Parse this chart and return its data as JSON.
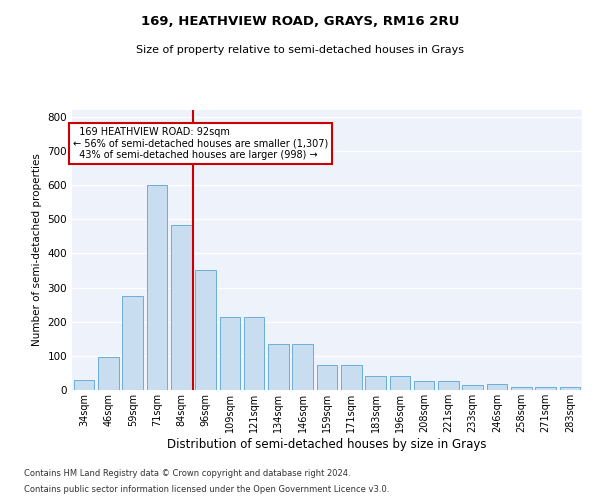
{
  "title1": "169, HEATHVIEW ROAD, GRAYS, RM16 2RU",
  "title2": "Size of property relative to semi-detached houses in Grays",
  "xlabel": "Distribution of semi-detached houses by size in Grays",
  "ylabel": "Number of semi-detached properties",
  "categories": [
    "34sqm",
    "46sqm",
    "59sqm",
    "71sqm",
    "84sqm",
    "96sqm",
    "109sqm",
    "121sqm",
    "134sqm",
    "146sqm",
    "159sqm",
    "171sqm",
    "183sqm",
    "196sqm",
    "208sqm",
    "221sqm",
    "233sqm",
    "246sqm",
    "258sqm",
    "271sqm",
    "283sqm"
  ],
  "bar_heights": [
    28,
    96,
    275,
    600,
    482,
    352,
    215,
    215,
    135,
    135,
    72,
    72,
    42,
    42,
    25,
    25,
    15,
    17,
    10,
    8,
    8
  ],
  "property_label": "169 HEATHVIEW ROAD: 92sqm",
  "pct_smaller": 56,
  "pct_smaller_n": 1307,
  "pct_larger": 43,
  "pct_larger_n": 998,
  "bar_color": "#c9ddf0",
  "bar_edge_color": "#6aaed6",
  "ref_line_color": "#cc0000",
  "annotation_box_color": "#cc0000",
  "background_color": "#eef2fa",
  "grid_color": "#ffffff",
  "ylim": [
    0,
    820
  ],
  "yticks": [
    0,
    100,
    200,
    300,
    400,
    500,
    600,
    700,
    800
  ],
  "footnote1": "Contains HM Land Registry data © Crown copyright and database right 2024.",
  "footnote2": "Contains public sector information licensed under the Open Government Licence v3.0."
}
